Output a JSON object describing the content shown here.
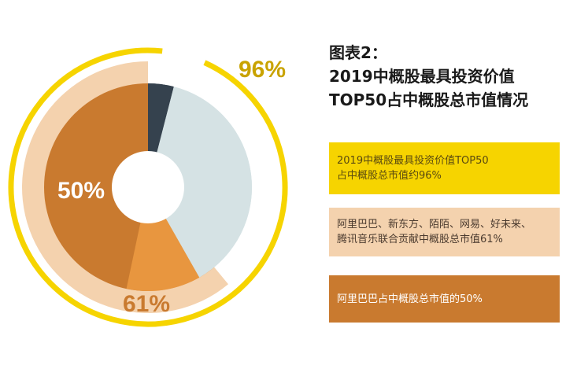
{
  "title": {
    "line1": "图表2：",
    "line2": "2019中概股最具投资价值",
    "line3": "TOP50占中概股总市值情况"
  },
  "legend": [
    {
      "line1": "2019中概股最具投资价值TOP50",
      "line2": "占中概股总市值约96%",
      "color": "#f6d400"
    },
    {
      "line1": "阿里巴巴、新东方、陌陌、网易、好未来、",
      "line2": "腾讯音乐联合贡献中概股总市值61%",
      "color": "#f4d2ae"
    },
    {
      "line1": "阿里巴巴占中概股总市值的50%",
      "line2": "",
      "color": "#c97a2f"
    }
  ],
  "chart_data": {
    "type": "pie",
    "rings": [
      {
        "label": "96%",
        "value": 96,
        "color": "#f6d400"
      },
      {
        "label": "61%",
        "value": 61,
        "color": "#f4d2ae"
      }
    ],
    "slices": [
      {
        "label": "50%",
        "value": 50,
        "color": "#c97a2f"
      },
      {
        "label": "",
        "value": 11,
        "color": "#e8963f"
      },
      {
        "label": "",
        "value": 35,
        "color": "#d5e2e4"
      },
      {
        "label": "",
        "value": 4,
        "color": "#35424e"
      }
    ]
  }
}
